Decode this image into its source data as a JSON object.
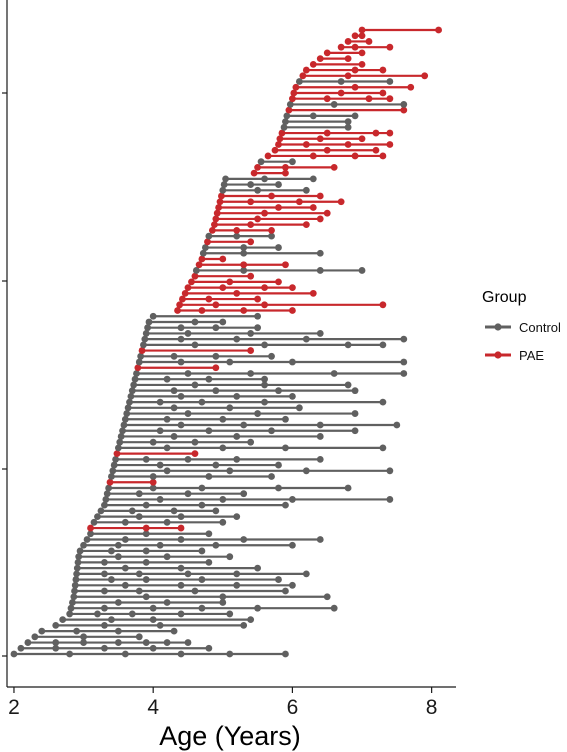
{
  "chart_data": {
    "type": "line",
    "title": "",
    "xlabel": "Age (Years)",
    "ylabel": "",
    "xlim": [
      1.9,
      8.35
    ],
    "x_ticks": [
      2,
      4,
      6,
      8
    ],
    "y_ticks_labeled": false,
    "grid": false,
    "legend": {
      "title": "Group",
      "placement": "right",
      "entries": [
        {
          "label": "Control",
          "color": "#606060"
        },
        {
          "label": "PAE",
          "color": "#c8282c"
        }
      ]
    },
    "colors": {
      "Control": "#606060",
      "PAE": "#c8282c"
    },
    "series": [
      {
        "name": "Control",
        "description": "each row is one participant; points are scan ages joined by a line"
      },
      {
        "name": "PAE"
      }
    ],
    "participants": [
      {
        "group": "Control",
        "ages": [
          2.0,
          2.8,
          3.6,
          4.4,
          5.1,
          5.9
        ]
      },
      {
        "group": "Control",
        "ages": [
          2.1,
          2.6,
          3.3,
          4.0,
          4.8
        ]
      },
      {
        "group": "Control",
        "ages": [
          2.2,
          2.6,
          3.0,
          3.5,
          3.9,
          4.2,
          4.5
        ]
      },
      {
        "group": "Control",
        "ages": [
          2.3,
          3.0,
          3.8
        ]
      },
      {
        "group": "Control",
        "ages": [
          2.4,
          2.9,
          3.5,
          4.3
        ]
      },
      {
        "group": "Control",
        "ages": [
          2.6,
          3.3,
          4.1,
          5.3
        ]
      },
      {
        "group": "Control",
        "ages": [
          2.7,
          3.4,
          4.0,
          5.4
        ]
      },
      {
        "group": "Control",
        "ages": [
          2.8,
          3.2,
          3.7,
          4.4,
          5.1
        ]
      },
      {
        "group": "Control",
        "ages": [
          2.82,
          3.3,
          4.0,
          4.7,
          5.5,
          6.6
        ]
      },
      {
        "group": "Control",
        "ages": [
          2.84,
          3.5,
          4.2,
          5.0
        ]
      },
      {
        "group": "Control",
        "ages": [
          2.86,
          3.9,
          5.0,
          6.5
        ]
      },
      {
        "group": "Control",
        "ages": [
          2.87,
          3.3,
          3.8,
          4.6,
          5.9
        ]
      },
      {
        "group": "Control",
        "ages": [
          2.88,
          3.6,
          4.4,
          5.2,
          6.0
        ]
      },
      {
        "group": "Control",
        "ages": [
          2.89,
          3.4,
          3.9,
          4.7,
          5.8
        ]
      },
      {
        "group": "Control",
        "ages": [
          2.9,
          3.3,
          3.8,
          4.5,
          5.2,
          6.2
        ]
      },
      {
        "group": "Control",
        "ages": [
          2.91,
          3.6,
          4.4,
          5.5
        ]
      },
      {
        "group": "Control",
        "ages": [
          2.92,
          3.3,
          3.9,
          4.8
        ]
      },
      {
        "group": "Control",
        "ages": [
          2.93,
          3.5,
          4.2,
          5.1
        ]
      },
      {
        "group": "Control",
        "ages": [
          2.95,
          3.4,
          3.9,
          4.7
        ]
      },
      {
        "group": "Control",
        "ages": [
          3.0,
          3.5,
          4.1,
          4.9,
          6.0
        ]
      },
      {
        "group": "Control",
        "ages": [
          3.05,
          3.6,
          4.4,
          5.3,
          6.4
        ]
      },
      {
        "group": "Control",
        "ages": [
          3.1,
          3.9,
          4.8
        ]
      },
      {
        "group": "PAE",
        "ages": [
          3.1,
          3.9,
          4.4
        ]
      },
      {
        "group": "Control",
        "ages": [
          3.15,
          3.6,
          4.2,
          5.0
        ]
      },
      {
        "group": "Control",
        "ages": [
          3.2,
          3.8,
          4.4,
          5.2
        ]
      },
      {
        "group": "Control",
        "ages": [
          3.25,
          3.7,
          4.3,
          4.9
        ]
      },
      {
        "group": "Control",
        "ages": [
          3.3,
          3.9,
          4.7,
          5.9
        ]
      },
      {
        "group": "Control",
        "ages": [
          3.32,
          4.1,
          5.0,
          6.0,
          7.4
        ]
      },
      {
        "group": "Control",
        "ages": [
          3.34,
          3.8,
          4.5,
          5.3
        ]
      },
      {
        "group": "Control",
        "ages": [
          3.36,
          4.0,
          4.7,
          5.8,
          6.8
        ]
      },
      {
        "group": "PAE",
        "ages": [
          3.38,
          4.0
        ]
      },
      {
        "group": "Control",
        "ages": [
          3.4,
          4.0,
          4.8,
          5.7
        ]
      },
      {
        "group": "Control",
        "ages": [
          3.42,
          4.2,
          5.1,
          6.2,
          7.4
        ]
      },
      {
        "group": "Control",
        "ages": [
          3.44,
          4.1,
          4.9,
          5.8
        ]
      },
      {
        "group": "Control",
        "ages": [
          3.46,
          3.9,
          4.5,
          5.2,
          6.4
        ]
      },
      {
        "group": "PAE",
        "ages": [
          3.48,
          4.6
        ]
      },
      {
        "group": "Control",
        "ages": [
          3.5,
          4.2,
          5.0,
          5.9,
          7.3
        ]
      },
      {
        "group": "Control",
        "ages": [
          3.52,
          4.0,
          4.6,
          5.4
        ]
      },
      {
        "group": "Control",
        "ages": [
          3.54,
          4.3,
          5.2,
          6.4
        ]
      },
      {
        "group": "Control",
        "ages": [
          3.56,
          4.1,
          4.8,
          5.7,
          6.9
        ]
      },
      {
        "group": "Control",
        "ages": [
          3.58,
          4.4,
          5.3,
          6.4,
          7.5
        ]
      },
      {
        "group": "Control",
        "ages": [
          3.6,
          4.2,
          5.0,
          5.9
        ]
      },
      {
        "group": "Control",
        "ages": [
          3.62,
          4.5,
          5.5,
          6.9
        ]
      },
      {
        "group": "Control",
        "ages": [
          3.64,
          4.3,
          5.1,
          6.1
        ]
      },
      {
        "group": "Control",
        "ages": [
          3.66,
          4.1,
          4.7,
          5.6,
          7.3
        ]
      },
      {
        "group": "Control",
        "ages": [
          3.68,
          4.4,
          5.2,
          6.0
        ]
      },
      {
        "group": "Control",
        "ages": [
          3.7,
          4.3,
          4.9,
          5.8,
          6.9
        ]
      },
      {
        "group": "Control",
        "ages": [
          3.72,
          4.6,
          5.6,
          6.8
        ]
      },
      {
        "group": "Control",
        "ages": [
          3.74,
          4.2,
          4.8,
          5.6
        ]
      },
      {
        "group": "Control",
        "ages": [
          3.76,
          4.5,
          5.4,
          6.6,
          7.6
        ]
      },
      {
        "group": "PAE",
        "ages": [
          3.78,
          4.9
        ]
      },
      {
        "group": "Control",
        "ages": [
          3.8,
          4.4,
          5.1,
          6.0,
          7.6
        ]
      },
      {
        "group": "Control",
        "ages": [
          3.82,
          4.3,
          4.9,
          5.7
        ]
      },
      {
        "group": "PAE",
        "ages": [
          3.84,
          5.4
        ]
      },
      {
        "group": "Control",
        "ages": [
          3.86,
          4.6,
          5.6,
          6.8,
          7.3
        ]
      },
      {
        "group": "Control",
        "ages": [
          3.88,
          4.4,
          5.2,
          6.2,
          7.6
        ]
      },
      {
        "group": "Control",
        "ages": [
          3.9,
          4.5,
          5.4,
          6.4
        ]
      },
      {
        "group": "Control",
        "ages": [
          3.92,
          4.4,
          4.9,
          5.5
        ]
      },
      {
        "group": "Control",
        "ages": [
          3.94,
          4.6,
          5.0
        ]
      },
      {
        "group": "Control",
        "ages": [
          4.0,
          5.5
        ]
      },
      {
        "group": "PAE",
        "ages": [
          4.35,
          4.7,
          5.3,
          6.0
        ]
      },
      {
        "group": "PAE",
        "ages": [
          4.38,
          4.9,
          5.6,
          7.3
        ]
      },
      {
        "group": "PAE",
        "ages": [
          4.42,
          4.8,
          5.5
        ]
      },
      {
        "group": "PAE",
        "ages": [
          4.46,
          5.2,
          6.3
        ]
      },
      {
        "group": "PAE",
        "ages": [
          4.5,
          5.0,
          5.6,
          6.0
        ]
      },
      {
        "group": "PAE",
        "ages": [
          4.55,
          5.1,
          5.8
        ]
      },
      {
        "group": "PAE",
        "ages": [
          4.6,
          5.4
        ]
      },
      {
        "group": "Control",
        "ages": [
          4.62,
          5.3,
          6.4,
          7.0
        ]
      },
      {
        "group": "PAE",
        "ages": [
          4.66,
          5.3,
          5.9
        ]
      },
      {
        "group": "PAE",
        "ages": [
          4.7,
          5.0
        ]
      },
      {
        "group": "Control",
        "ages": [
          4.72,
          5.3,
          6.4
        ]
      },
      {
        "group": "Control",
        "ages": [
          4.75,
          5.3,
          5.8
        ]
      },
      {
        "group": "PAE",
        "ages": [
          4.78,
          5.4
        ]
      },
      {
        "group": "Control",
        "ages": [
          4.8,
          5.2,
          5.7
        ]
      },
      {
        "group": "PAE",
        "ages": [
          4.85,
          5.2,
          5.7
        ]
      },
      {
        "group": "PAE",
        "ages": [
          4.88,
          5.4,
          6.2
        ]
      },
      {
        "group": "PAE",
        "ages": [
          4.9,
          5.5,
          6.4
        ]
      },
      {
        "group": "PAE",
        "ages": [
          4.92,
          5.6,
          6.5
        ]
      },
      {
        "group": "PAE",
        "ages": [
          4.94,
          5.8,
          6.3
        ]
      },
      {
        "group": "PAE",
        "ages": [
          4.96,
          5.4,
          6.1,
          6.7
        ]
      },
      {
        "group": "PAE",
        "ages": [
          4.98,
          5.7,
          6.4
        ]
      },
      {
        "group": "Control",
        "ages": [
          5.0,
          5.5,
          6.2
        ]
      },
      {
        "group": "Control",
        "ages": [
          5.02,
          5.4,
          5.8
        ]
      },
      {
        "group": "Control",
        "ages": [
          5.04,
          5.6,
          6.3
        ]
      },
      {
        "group": "PAE",
        "ages": [
          5.45,
          5.9
        ]
      },
      {
        "group": "PAE",
        "ages": [
          5.5,
          5.9,
          6.6
        ]
      },
      {
        "group": "Control",
        "ages": [
          5.55,
          6.0
        ]
      },
      {
        "group": "PAE",
        "ages": [
          5.65,
          6.3,
          6.9,
          7.3
        ]
      },
      {
        "group": "PAE",
        "ages": [
          5.75,
          6.5,
          7.2
        ]
      },
      {
        "group": "PAE",
        "ages": [
          5.8,
          6.2,
          6.8,
          7.4
        ]
      },
      {
        "group": "PAE",
        "ages": [
          5.82,
          6.4,
          7.0
        ]
      },
      {
        "group": "PAE",
        "ages": [
          5.85,
          6.5,
          7.2,
          7.4
        ]
      },
      {
        "group": "Control",
        "ages": [
          5.88,
          6.8
        ]
      },
      {
        "group": "Control",
        "ages": [
          5.9,
          6.8
        ]
      },
      {
        "group": "Control",
        "ages": [
          5.92,
          6.3,
          6.9
        ]
      },
      {
        "group": "PAE",
        "ages": [
          5.95,
          7.6
        ]
      },
      {
        "group": "Control",
        "ages": [
          5.97,
          6.6,
          7.6
        ]
      },
      {
        "group": "PAE",
        "ages": [
          6.0,
          6.5,
          7.1,
          7.4
        ]
      },
      {
        "group": "PAE",
        "ages": [
          6.02,
          6.7,
          7.3
        ]
      },
      {
        "group": "PAE",
        "ages": [
          6.05,
          6.9,
          7.7
        ]
      },
      {
        "group": "Control",
        "ages": [
          6.1,
          6.7,
          7.4
        ]
      },
      {
        "group": "PAE",
        "ages": [
          6.15,
          6.8,
          7.9
        ]
      },
      {
        "group": "PAE",
        "ages": [
          6.2,
          6.9,
          7.3
        ]
      },
      {
        "group": "PAE",
        "ages": [
          6.3,
          7.0
        ]
      },
      {
        "group": "PAE",
        "ages": [
          6.4,
          6.8
        ]
      },
      {
        "group": "PAE",
        "ages": [
          6.5,
          7.0
        ]
      },
      {
        "group": "PAE",
        "ages": [
          6.7,
          6.9,
          7.4
        ]
      },
      {
        "group": "PAE",
        "ages": [
          6.8,
          7.1
        ]
      },
      {
        "group": "PAE",
        "ages": [
          6.9,
          7.0
        ]
      },
      {
        "group": "PAE",
        "ages": [
          7.0,
          8.1
        ]
      }
    ]
  }
}
